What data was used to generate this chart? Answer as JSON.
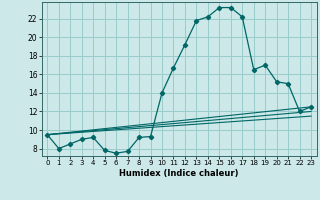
{
  "xlabel": "Humidex (Indice chaleur)",
  "bg_color": "#cce8e8",
  "grid_color": "#99cccc",
  "line_color": "#006666",
  "xlim": [
    -0.5,
    23.5
  ],
  "ylim": [
    7.2,
    23.8
  ],
  "xticks": [
    0,
    1,
    2,
    3,
    4,
    5,
    6,
    7,
    8,
    9,
    10,
    11,
    12,
    13,
    14,
    15,
    16,
    17,
    18,
    19,
    20,
    21,
    22,
    23
  ],
  "yticks": [
    8,
    10,
    12,
    14,
    16,
    18,
    20,
    22
  ],
  "line1_x": [
    0,
    1,
    2,
    3,
    4,
    5,
    6,
    7,
    8,
    9,
    10,
    11,
    12,
    13,
    14,
    15,
    16,
    17,
    18,
    19,
    20,
    21,
    22,
    23
  ],
  "line1_y": [
    9.5,
    8.0,
    8.5,
    9.0,
    9.2,
    7.8,
    7.5,
    7.7,
    9.2,
    9.3,
    14.0,
    16.7,
    19.2,
    21.8,
    22.2,
    23.2,
    23.2,
    22.2,
    16.5,
    17.0,
    15.2,
    15.0,
    12.0,
    12.5
  ],
  "line2_x": [
    0,
    23
  ],
  "line2_y": [
    9.5,
    12.5
  ],
  "line3_x": [
    0,
    23
  ],
  "line3_y": [
    9.5,
    12.0
  ],
  "line4_x": [
    0,
    23
  ],
  "line4_y": [
    9.5,
    11.5
  ]
}
